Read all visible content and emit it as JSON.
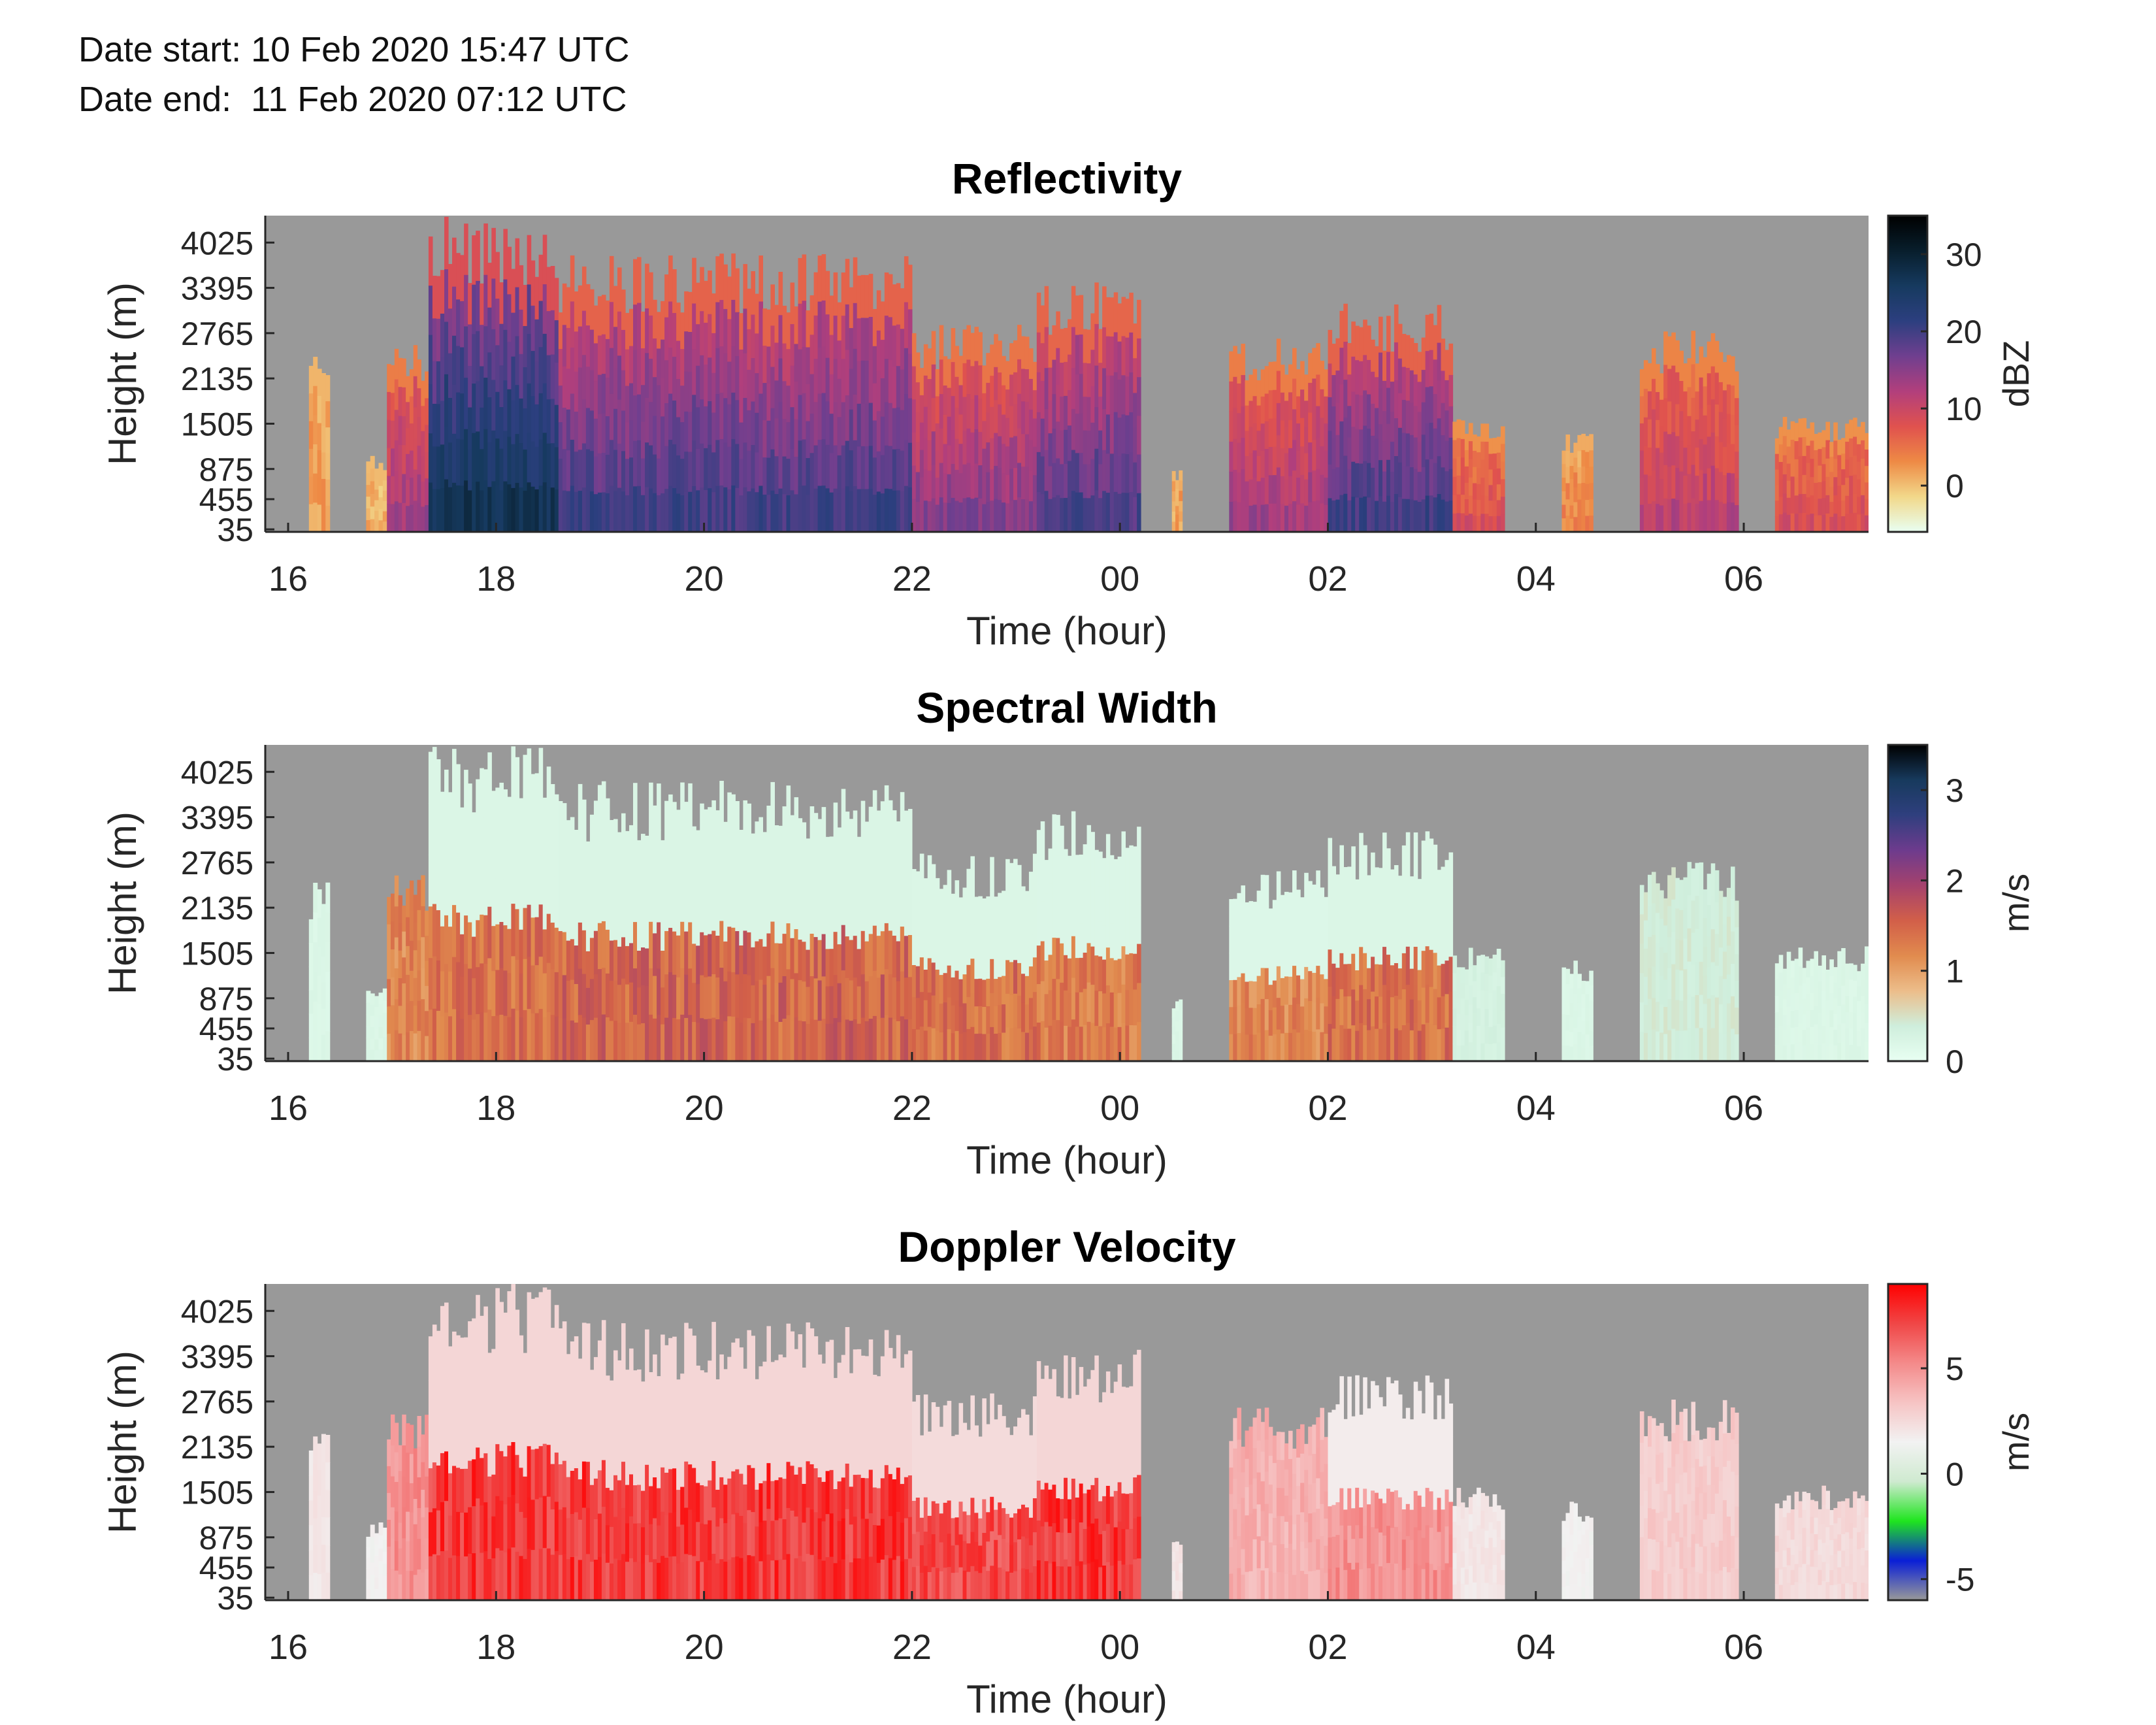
{
  "header": {
    "date_start": "Date start: 10 Feb 2020 15:47 UTC",
    "date_end": "Date end:  11 Feb 2020 07:12 UTC"
  },
  "colors": {
    "background_missing": "#999999",
    "reflectivity_colormap": [
      "#e8fff2",
      "#f2d88a",
      "#ee8a45",
      "#e0524e",
      "#b23f7c",
      "#6f3f8f",
      "#2c3f7f",
      "#163a5f",
      "#081e2c",
      "#000000"
    ],
    "spectral_width_colormap": [
      "#e8fff2",
      "#cfeedc",
      "#ecbd8a",
      "#e18b4e",
      "#d25f49",
      "#a5426d",
      "#6d3b8d",
      "#2f3f7e",
      "#173a5d",
      "#000000"
    ],
    "velocity_colormap": [
      "#999999",
      "#0a1fd6",
      "#1fe51f",
      "#cfead0",
      "#f2f2f2",
      "#f6c4c4",
      "#f48a8a",
      "#f04646",
      "#ff0000"
    ]
  },
  "chart_data": [
    {
      "type": "heatmap",
      "title": "Reflectivity",
      "xlabel": "Time (hour)",
      "ylabel": "Height (m)",
      "xticks": [
        "16",
        "18",
        "20",
        "22",
        "00",
        "02",
        "04",
        "06"
      ],
      "xtick_hours_since_midnight_feb10": [
        16,
        18,
        20,
        22,
        24,
        26,
        28,
        30
      ],
      "xlim_hours": [
        15.78,
        31.2
      ],
      "yticks": [
        "35",
        "455",
        "875",
        "1505",
        "2135",
        "2765",
        "3395",
        "4025"
      ],
      "ytick_values": [
        35,
        455,
        875,
        1505,
        2135,
        2765,
        3395,
        4025
      ],
      "ylim": [
        0,
        4400
      ],
      "colorbar": {
        "label": "dBZ",
        "ticks": [
          "0",
          "10",
          "20",
          "30"
        ],
        "tick_values": [
          0,
          10,
          20,
          30
        ],
        "range": [
          -6,
          35
        ]
      },
      "cloud_segments": [
        {
          "start": 16.2,
          "end": 16.4,
          "top": 2500,
          "base_value": 2,
          "band": 0
        },
        {
          "start": 16.75,
          "end": 16.95,
          "top": 1100,
          "base_value": 1,
          "band": 0
        },
        {
          "start": 16.95,
          "end": 17.35,
          "top": 2600,
          "base_value": 14,
          "band": 0
        },
        {
          "start": 17.35,
          "end": 18.6,
          "top": 4400,
          "base_value": 28,
          "band": 0
        },
        {
          "start": 18.6,
          "end": 22.0,
          "top": 3900,
          "base_value": 21,
          "band": 0
        },
        {
          "start": 22.0,
          "end": 23.2,
          "top": 2900,
          "base_value": 16,
          "band": 0
        },
        {
          "start": 23.2,
          "end": 24.2,
          "top": 3500,
          "base_value": 20,
          "band": 0
        },
        {
          "start": 24.5,
          "end": 24.6,
          "top": 900,
          "base_value": 2,
          "band": 0
        },
        {
          "start": 25.05,
          "end": 26.0,
          "top": 2700,
          "base_value": 14,
          "band": 0
        },
        {
          "start": 26.0,
          "end": 27.2,
          "top": 3200,
          "base_value": 21,
          "band": 0
        },
        {
          "start": 27.2,
          "end": 27.7,
          "top": 1600,
          "base_value": 9,
          "band": 0
        },
        {
          "start": 28.25,
          "end": 28.55,
          "top": 1400,
          "base_value": 4,
          "band": 0
        },
        {
          "start": 29.0,
          "end": 29.95,
          "top": 2800,
          "base_value": 12,
          "band": 0
        },
        {
          "start": 30.3,
          "end": 31.2,
          "top": 1600,
          "base_value": 9,
          "band": 0
        }
      ]
    },
    {
      "type": "heatmap",
      "title": "Spectral Width",
      "xlabel": "Time (hour)",
      "ylabel": "Height (m)",
      "xticks": [
        "16",
        "18",
        "20",
        "22",
        "00",
        "02",
        "04",
        "06"
      ],
      "xtick_hours_since_midnight_feb10": [
        16,
        18,
        20,
        22,
        24,
        26,
        28,
        30
      ],
      "xlim_hours": [
        15.78,
        31.2
      ],
      "yticks": [
        "35",
        "455",
        "875",
        "1505",
        "2135",
        "2765",
        "3395",
        "4025"
      ],
      "ytick_values": [
        35,
        455,
        875,
        1505,
        2135,
        2765,
        3395,
        4025
      ],
      "ylim": [
        0,
        4400
      ],
      "colorbar": {
        "label": "m/s",
        "ticks": [
          "0",
          "1",
          "2",
          "3"
        ],
        "tick_values": [
          0,
          1,
          2,
          3
        ],
        "range": [
          0,
          3.5
        ]
      },
      "cloud_segments": [
        {
          "start": 16.2,
          "end": 16.4,
          "top": 2500,
          "base_value": 0.2,
          "band": 0
        },
        {
          "start": 16.75,
          "end": 16.95,
          "top": 1100,
          "base_value": 0.2,
          "band": 0
        },
        {
          "start": 16.95,
          "end": 17.35,
          "top": 2600,
          "base_value": 1.2,
          "band": 0
        },
        {
          "start": 17.35,
          "end": 18.6,
          "top": 4400,
          "base_value": 1.4,
          "band": 2200
        },
        {
          "start": 18.6,
          "end": 22.0,
          "top": 3900,
          "base_value": 1.5,
          "band": 2100
        },
        {
          "start": 22.0,
          "end": 23.2,
          "top": 2900,
          "base_value": 1.4,
          "band": 2000
        },
        {
          "start": 23.2,
          "end": 24.2,
          "top": 3500,
          "base_value": 1.3,
          "band": 2000
        },
        {
          "start": 24.5,
          "end": 24.6,
          "top": 900,
          "base_value": 0.2,
          "band": 0
        },
        {
          "start": 25.05,
          "end": 26.0,
          "top": 2700,
          "base_value": 1.2,
          "band": 1900
        },
        {
          "start": 26.0,
          "end": 27.2,
          "top": 3200,
          "base_value": 1.4,
          "band": 1700
        },
        {
          "start": 27.2,
          "end": 27.7,
          "top": 1600,
          "base_value": 0.3,
          "band": 0
        },
        {
          "start": 28.25,
          "end": 28.55,
          "top": 1400,
          "base_value": 0.2,
          "band": 0
        },
        {
          "start": 29.0,
          "end": 29.95,
          "top": 2800,
          "base_value": 0.4,
          "band": 0
        },
        {
          "start": 30.3,
          "end": 31.2,
          "top": 1600,
          "base_value": 0.2,
          "band": 0
        }
      ]
    },
    {
      "type": "heatmap",
      "title": "Doppler Velocity",
      "xlabel": "Time (hour)",
      "ylabel": "Height (m)",
      "xticks": [
        "16",
        "18",
        "20",
        "22",
        "00",
        "02",
        "04",
        "06"
      ],
      "xtick_hours_since_midnight_feb10": [
        16,
        18,
        20,
        22,
        24,
        26,
        28,
        30
      ],
      "xlim_hours": [
        15.78,
        31.2
      ],
      "yticks": [
        "35",
        "455",
        "875",
        "1505",
        "2135",
        "2765",
        "3395",
        "4025"
      ],
      "ytick_values": [
        35,
        455,
        875,
        1505,
        2135,
        2765,
        3395,
        4025
      ],
      "ylim": [
        0,
        4400
      ],
      "colorbar": {
        "label": "m/s",
        "ticks": [
          "-5",
          "0",
          "5"
        ],
        "tick_values": [
          -5,
          0,
          5
        ],
        "range": [
          -6,
          9
        ]
      },
      "cloud_segments": [
        {
          "start": 16.2,
          "end": 16.4,
          "top": 2500,
          "base_value": 2,
          "band": 0
        },
        {
          "start": 16.75,
          "end": 16.95,
          "top": 1100,
          "base_value": 1.5,
          "band": 0
        },
        {
          "start": 16.95,
          "end": 17.35,
          "top": 2600,
          "base_value": 5,
          "band": 0
        },
        {
          "start": 17.35,
          "end": 18.6,
          "top": 4400,
          "base_value": 7.5,
          "band": 2200
        },
        {
          "start": 18.6,
          "end": 22.0,
          "top": 3900,
          "base_value": 7.5,
          "band": 2100
        },
        {
          "start": 22.0,
          "end": 23.2,
          "top": 2900,
          "base_value": 7,
          "band": 2000
        },
        {
          "start": 23.2,
          "end": 24.2,
          "top": 3500,
          "base_value": 7.5,
          "band": 2000
        },
        {
          "start": 24.5,
          "end": 24.6,
          "top": 900,
          "base_value": 2,
          "band": 0
        },
        {
          "start": 25.05,
          "end": 26.0,
          "top": 2700,
          "base_value": 4,
          "band": 0
        },
        {
          "start": 26.0,
          "end": 27.2,
          "top": 3200,
          "base_value": 5,
          "band": 1700
        },
        {
          "start": 27.2,
          "end": 27.7,
          "top": 1600,
          "base_value": 2,
          "band": 0
        },
        {
          "start": 28.25,
          "end": 28.55,
          "top": 1400,
          "base_value": 1.5,
          "band": 0
        },
        {
          "start": 29.0,
          "end": 29.95,
          "top": 2800,
          "base_value": 3,
          "band": 0
        },
        {
          "start": 30.3,
          "end": 31.2,
          "top": 1600,
          "base_value": 2.5,
          "band": 0
        }
      ]
    }
  ]
}
